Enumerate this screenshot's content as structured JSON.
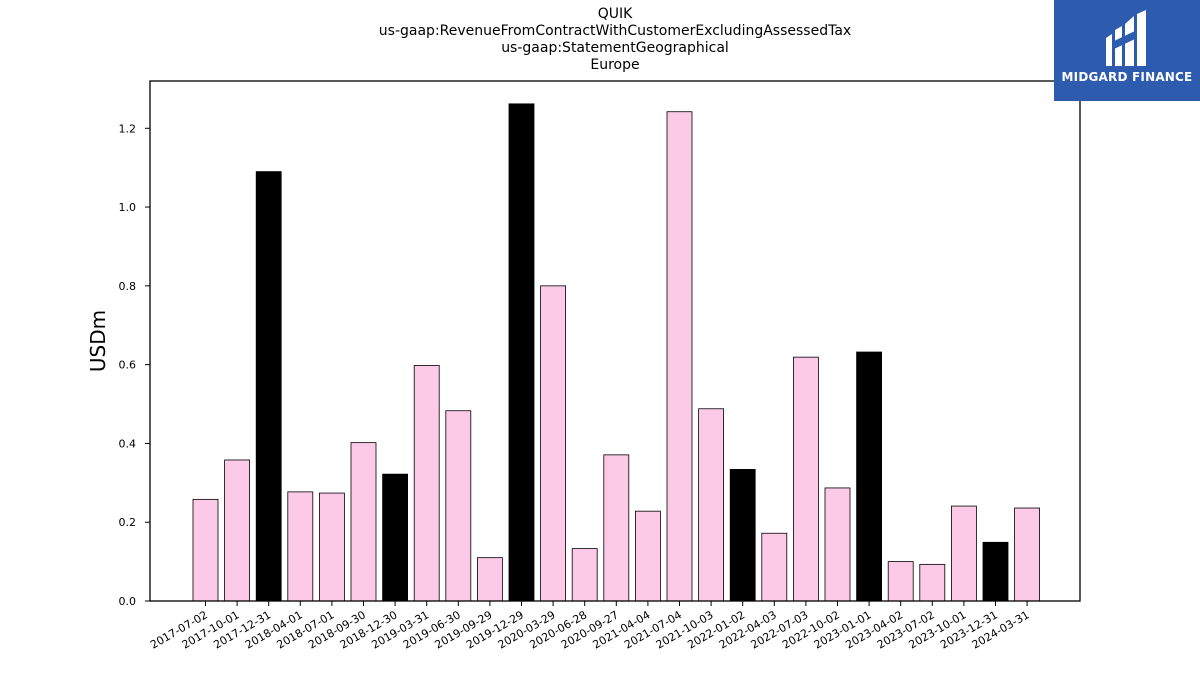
{
  "header": {
    "title_lines": [
      "QUIK",
      "us-gaap:RevenueFromContractWithCustomerExcludingAssessedTax",
      "us-gaap:StatementGeographical",
      "Europe"
    ]
  },
  "logo": {
    "text": "MIDGARD FINANCE",
    "icon": "midgard-logo-icon",
    "background": "#2d5cae"
  },
  "chart_data": {
    "type": "bar",
    "title": "QUIK\nus-gaap:RevenueFromContractWithCustomerExcludingAssessedTax\nus-gaap:StatementGeographical\nEurope",
    "xlabel": "",
    "ylabel": "USDm",
    "ylim": [
      0,
      1.32
    ],
    "yticks": [
      0.0,
      0.2,
      0.4,
      0.6,
      0.8,
      1.0,
      1.2
    ],
    "grid": false,
    "colors": {
      "quarter": "#fccae6",
      "year_end": "#000000",
      "edge": "#000000"
    },
    "categories": [
      "2017-07-02",
      "2017-10-01",
      "2017-12-31",
      "2018-04-01",
      "2018-07-01",
      "2018-09-30",
      "2018-12-30",
      "2019-03-31",
      "2019-06-30",
      "2019-09-29",
      "2019-12-29",
      "2020-03-29",
      "2020-06-28",
      "2020-09-27",
      "2021-04-04",
      "2021-07-04",
      "2021-10-03",
      "2022-01-02",
      "2022-04-03",
      "2022-07-03",
      "2022-10-02",
      "2023-01-01",
      "2023-04-02",
      "2023-07-02",
      "2023-10-01",
      "2023-12-31",
      "2024-03-31"
    ],
    "values": [
      0.258,
      0.358,
      1.09,
      0.277,
      0.274,
      0.402,
      0.322,
      0.598,
      0.483,
      0.11,
      1.262,
      0.8,
      0.133,
      0.371,
      0.228,
      1.242,
      0.488,
      0.334,
      0.172,
      0.619,
      0.287,
      0.632,
      0.1,
      0.093,
      0.241,
      0.149,
      0.236
    ],
    "highlight": [
      false,
      false,
      true,
      false,
      false,
      false,
      true,
      false,
      false,
      false,
      true,
      false,
      false,
      false,
      false,
      false,
      false,
      true,
      false,
      false,
      false,
      true,
      false,
      false,
      false,
      true,
      false
    ]
  }
}
